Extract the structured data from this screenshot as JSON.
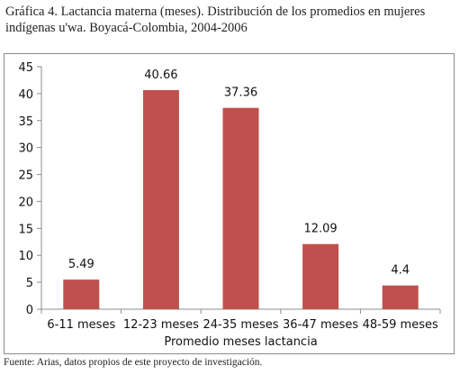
{
  "caption": "Gráfica 4. Lactancia materna (meses). Distribución de los promedios en mujeres indígenas u'wa. Boyacá-Colombia, 2004-2006",
  "source": "Fuente: Arias, datos propios de este proyecto de investigación.",
  "colors": {
    "bar": "#c0504d",
    "axis": "#8c8c8c"
  },
  "chart_data": {
    "type": "bar",
    "categories": [
      "6-11 meses",
      "12-23 meses",
      "24-35 meses",
      "36-47 meses",
      "48-59 meses"
    ],
    "values": [
      5.49,
      40.66,
      37.36,
      12.09,
      4.4
    ],
    "data_labels": [
      "5.49",
      "40.66",
      "37.36",
      "12.09",
      "4.4"
    ],
    "title": "",
    "xlabel": "Promedio meses lactancia",
    "ylabel": "",
    "ylim": [
      0,
      45
    ],
    "yticks": [
      0,
      5,
      10,
      15,
      20,
      25,
      30,
      35,
      40,
      45
    ],
    "grid": false,
    "legend": "none"
  }
}
